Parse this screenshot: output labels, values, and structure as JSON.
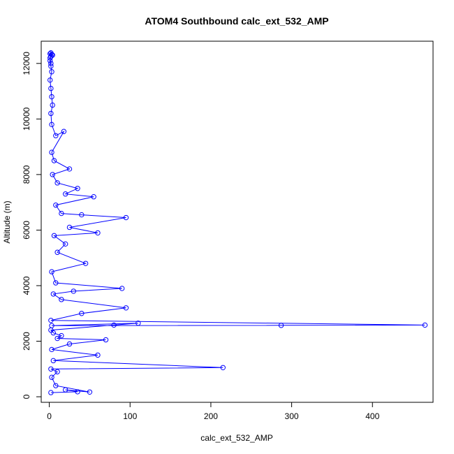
{
  "chart_data": {
    "type": "line",
    "title": "ATOM4 Southbound calc_ext_532_AMP",
    "xlabel": "calc_ext_532_AMP",
    "ylabel": "Altitude (m)",
    "xlim": [
      -10,
      475
    ],
    "ylim": [
      -200,
      12800
    ],
    "xticks": [
      "0",
      "100",
      "200",
      "300",
      "400"
    ],
    "yticks": [
      "0",
      "2000",
      "4000",
      "6000",
      "8000",
      "10000",
      "12000"
    ],
    "grid": false,
    "legend": "none",
    "color": "#0000ff",
    "marker": "open-circle",
    "series": [
      {
        "x": [
          2,
          35,
          20,
          50,
          8,
          3,
          10,
          2,
          215,
          5,
          60,
          3,
          25,
          70,
          10,
          15,
          5,
          2,
          80,
          110,
          3,
          287,
          465,
          2,
          40,
          95,
          15,
          5,
          30,
          90,
          8,
          3,
          45,
          10,
          20,
          6,
          60,
          25,
          95,
          40,
          15,
          8,
          55,
          20,
          35,
          10,
          4,
          25,
          6,
          3,
          18,
          8,
          3,
          2,
          4,
          3,
          2,
          1,
          3,
          2,
          1,
          2,
          4,
          1,
          2,
          3,
          1,
          2
        ],
        "y": [
          150,
          180,
          250,
          170,
          400,
          700,
          900,
          1000,
          1050,
          1300,
          1500,
          1700,
          1900,
          2050,
          2100,
          2200,
          2300,
          2400,
          2580,
          2650,
          2560,
          2570,
          2580,
          2750,
          3000,
          3200,
          3500,
          3700,
          3800,
          3900,
          4100,
          4500,
          4800,
          5200,
          5500,
          5800,
          5900,
          6100,
          6450,
          6550,
          6600,
          6900,
          7200,
          7300,
          7500,
          7700,
          8000,
          8200,
          8500,
          8800,
          9550,
          9400,
          9800,
          10200,
          10500,
          10800,
          11100,
          11400,
          11700,
          11900,
          12100,
          12250,
          12300,
          12350,
          12380,
          12320,
          12200,
          12000
        ]
      }
    ]
  }
}
